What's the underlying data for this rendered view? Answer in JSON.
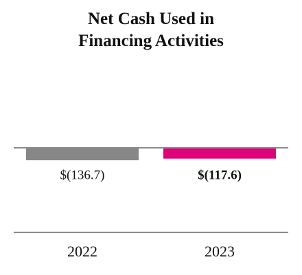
{
  "chart_data": {
    "type": "bar",
    "title": "Net Cash Used in Financing Activities",
    "categories": [
      "2022",
      "2023"
    ],
    "values": [
      -136.7,
      -117.6
    ],
    "value_labels": [
      "$(136.7)",
      "$(117.6)"
    ],
    "colors": [
      "#878787",
      "#e0007a"
    ]
  }
}
